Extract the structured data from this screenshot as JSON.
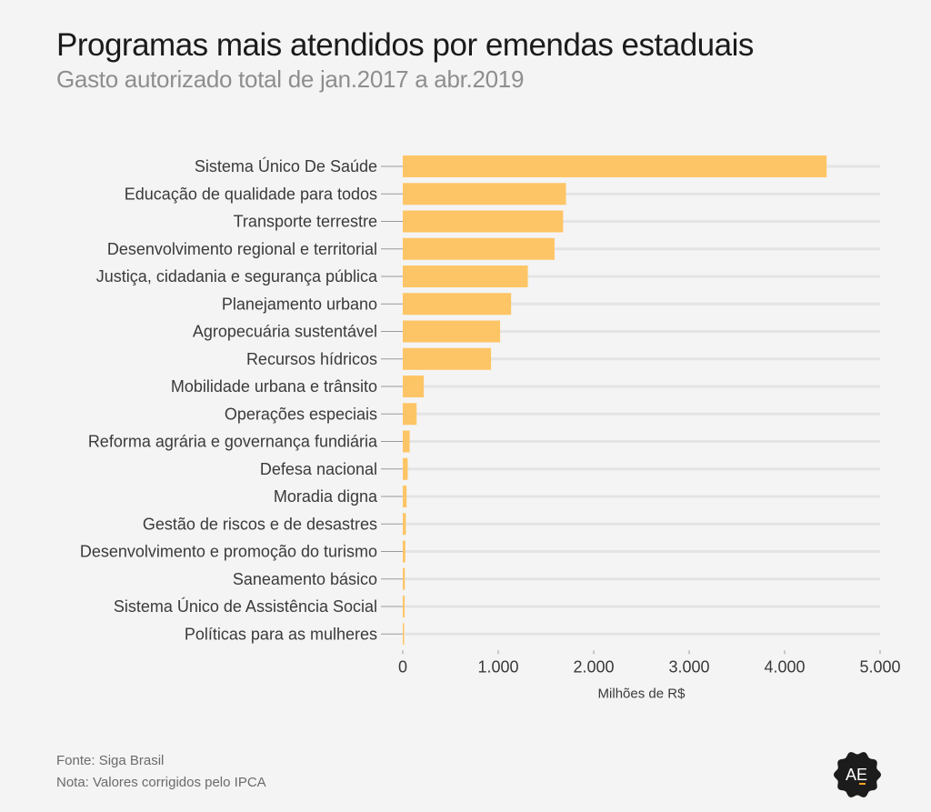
{
  "header": {
    "title": "Programas mais atendidos por emendas estaduais",
    "subtitle": "Gasto autorizado total de jan.2017 a abr.2019"
  },
  "footer": {
    "source": "Fonte: Siga Brasil",
    "note": "Nota: Valores corrigidos pelo IPCA"
  },
  "logo": {
    "text": "AE",
    "icon": "af-badge-icon",
    "accent": "#f5a623"
  },
  "colors": {
    "bar": "#fec566",
    "grid": "#e4e4e4",
    "tick": "#9a9a9a"
  },
  "chart_data": {
    "type": "bar",
    "orientation": "horizontal",
    "title": "Programas mais atendidos por emendas estaduais",
    "subtitle": "Gasto autorizado total de jan.2017 a abr.2019",
    "xlabel": "Milhões de R$",
    "ylabel": "",
    "xlim": [
      0,
      5000
    ],
    "xticks": [
      0,
      1000,
      2000,
      3000,
      4000,
      5000
    ],
    "xtick_labels": [
      "0",
      "1.000",
      "2.000",
      "3.000",
      "4.000",
      "5.000"
    ],
    "grid": true,
    "legend": "none",
    "categories": [
      "Sistema Único De Saúde",
      "Educação de qualidade para todos",
      "Transporte terrestre",
      "Desenvolvimento regional e territorial",
      "Justiça, cidadania e segurança pública",
      "Planejamento urbano",
      "Agropecuária sustentável",
      "Recursos hídricos",
      "Mobilidade urbana e trânsito",
      "Operações especiais",
      "Reforma agrária e governança fundiária",
      "Defesa nacional",
      "Moradia digna",
      "Gestão de riscos e de desastres",
      "Desenvolvimento e promoção do turismo",
      "Saneamento básico",
      "Sistema Único de Assistência Social",
      "Políticas para as mulheres"
    ],
    "values": [
      4440,
      1710,
      1680,
      1590,
      1310,
      1135,
      1020,
      925,
      220,
      145,
      72,
      52,
      40,
      33,
      27,
      22,
      20,
      13
    ]
  }
}
